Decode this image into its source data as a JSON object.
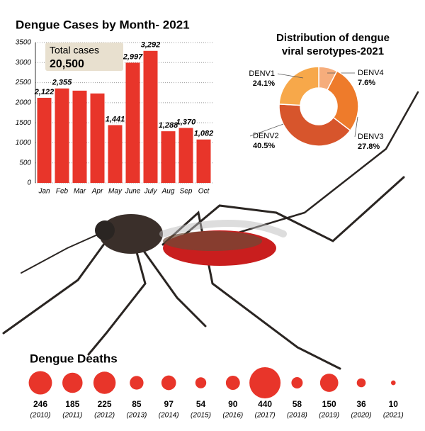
{
  "chart_data": [
    {
      "type": "bar",
      "title": "Dengue Cases by Month- 2021",
      "categories": [
        "Jan",
        "Feb",
        "Mar",
        "Apr",
        "May",
        "June",
        "July",
        "Aug",
        "Sep",
        "Oct"
      ],
      "values": [
        2122,
        2355,
        2300,
        2230,
        1441,
        2997,
        3292,
        1288,
        1370,
        1082
      ],
      "value_labels": [
        "2,122",
        "2,355",
        null,
        null,
        "1,441",
        "2,997",
        "3,292",
        "1,288",
        "1,370",
        "1,082"
      ],
      "color": "#e8352a",
      "ylim": [
        0,
        3500
      ],
      "yticks": [
        0,
        500,
        1000,
        1500,
        2000,
        2500,
        3000,
        3500
      ],
      "grid": true,
      "annotation": {
        "label": "Total cases",
        "value": "20,500"
      }
    },
    {
      "type": "pie",
      "title": "Distribution of dengue viral serotypes-2021",
      "categories": [
        "DENV4",
        "DENV3",
        "DENV2",
        "DENV1"
      ],
      "values": [
        7.6,
        27.8,
        40.5,
        24.1
      ],
      "value_labels": [
        "7.6%",
        "27.8%",
        "40.5%",
        "24.1%"
      ],
      "colors": [
        "#f6ad7c",
        "#ee7b2b",
        "#d7552c",
        "#f7a84a"
      ]
    },
    {
      "type": "bubble",
      "title": "Dengue Deaths",
      "categories": [
        "(2010)",
        "(2011)",
        "(2012)",
        "(2013)",
        "(2014)",
        "(2015)",
        "(2016)",
        "(2017)",
        "(2018)",
        "(2019)",
        "(2020)",
        "(2021)"
      ],
      "values": [
        246,
        185,
        225,
        85,
        97,
        54,
        90,
        440,
        58,
        150,
        36,
        10
      ],
      "color": "#e8352a"
    }
  ]
}
